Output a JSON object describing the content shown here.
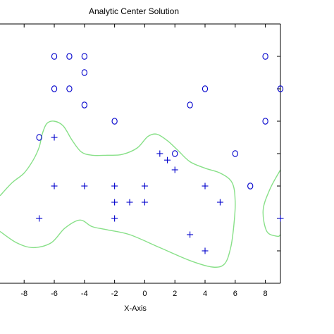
{
  "chart_data": {
    "type": "scatter",
    "title": "Analytic Center Solution",
    "xlabel": "X-Axis",
    "ylabel": "",
    "xlim": [
      -9.6,
      9
    ],
    "ylim": [
      -8,
      8
    ],
    "x_ticks": [
      -8,
      -6,
      -4,
      -2,
      0,
      2,
      4,
      6,
      8
    ],
    "x_tick_labels": [
      "-8",
      "-6",
      "-4",
      "-2",
      "0",
      "2",
      "4",
      "6",
      "8"
    ],
    "y_ticks": [
      -6,
      -4,
      -2,
      0,
      2,
      4,
      6
    ],
    "grid": false,
    "series": [
      {
        "marker": "circle",
        "color": "#0000cc",
        "points": [
          [
            -6,
            6
          ],
          [
            -5,
            6
          ],
          [
            -4,
            6
          ],
          [
            8,
            6
          ],
          [
            -4,
            5
          ],
          [
            -6,
            4
          ],
          [
            -5,
            4
          ],
          [
            4,
            4
          ],
          [
            9,
            4
          ],
          [
            -4,
            3
          ],
          [
            3,
            3
          ],
          [
            -2,
            2
          ],
          [
            8,
            2
          ],
          [
            -7,
            1
          ],
          [
            2,
            0
          ],
          [
            6,
            0
          ],
          [
            7,
            -2
          ]
        ]
      },
      {
        "marker": "plus",
        "color": "#0000cc",
        "points": [
          [
            -6,
            1
          ],
          [
            1,
            0
          ],
          [
            1.5,
            -0.4
          ],
          [
            2,
            -1
          ],
          [
            -6,
            -2
          ],
          [
            -4,
            -2
          ],
          [
            -2,
            -2
          ],
          [
            0,
            -2
          ],
          [
            4,
            -2
          ],
          [
            -2,
            -3
          ],
          [
            -1,
            -3
          ],
          [
            0,
            -3
          ],
          [
            5,
            -3
          ],
          [
            -7,
            -4
          ],
          [
            -2,
            -4
          ],
          [
            9,
            -4
          ],
          [
            3,
            -5
          ],
          [
            4,
            -6
          ]
        ]
      }
    ],
    "boundary": {
      "color": "#88e088",
      "curves": [
        [
          [
            -9.6,
            -2.6
          ],
          [
            -8.8,
            -1.8
          ],
          [
            -8,
            -1.2
          ],
          [
            -7.4,
            -0.4
          ],
          [
            -7,
            0.4
          ],
          [
            -6.8,
            1.2
          ],
          [
            -6.5,
            1.85
          ],
          [
            -6,
            2.0
          ],
          [
            -5.4,
            1.7
          ],
          [
            -4.8,
            0.8
          ],
          [
            -4.2,
            0.1
          ],
          [
            -3.5,
            -0.1
          ],
          [
            -2.5,
            -0.1
          ],
          [
            -1.5,
            -0.05
          ],
          [
            -0.5,
            0.35
          ],
          [
            0.2,
            1.05
          ],
          [
            0.8,
            1.2
          ],
          [
            1.5,
            0.8
          ],
          [
            2.2,
            0.2
          ],
          [
            3,
            -0.5
          ],
          [
            4,
            -0.9
          ],
          [
            5,
            -1.2
          ],
          [
            5.8,
            -1.8
          ],
          [
            6,
            -3
          ],
          [
            5.9,
            -4.5
          ],
          [
            5.7,
            -5.8
          ],
          [
            5.3,
            -6.8
          ],
          [
            4.5,
            -7.0
          ],
          [
            3,
            -6.6
          ],
          [
            1,
            -5.8
          ],
          [
            -1,
            -5
          ],
          [
            -2.5,
            -4.7
          ],
          [
            -3.5,
            -4.5
          ],
          [
            -4.3,
            -4.1
          ],
          [
            -5.3,
            -4.6
          ],
          [
            -6.2,
            -5.5
          ],
          [
            -7.4,
            -5.8
          ],
          [
            -8.5,
            -5.5
          ],
          [
            -9.6,
            -4.8
          ]
        ],
        [
          [
            9,
            -1
          ],
          [
            8.3,
            -2.2
          ],
          [
            7.85,
            -3.5
          ],
          [
            8.1,
            -4.8
          ],
          [
            8.8,
            -5.1
          ],
          [
            9,
            -5.0
          ]
        ]
      ]
    }
  }
}
